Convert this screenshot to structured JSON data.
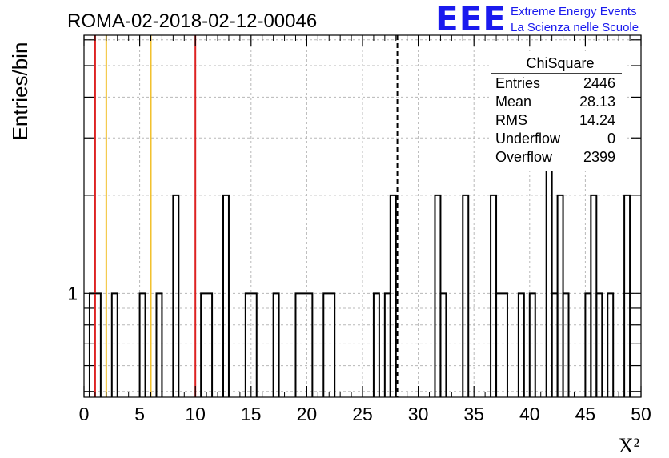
{
  "chart_data": {
    "type": "histogram",
    "title": "ROMA-02-2018-02-12-00046",
    "xlabel": "X²",
    "ylabel": "Entries/bin",
    "xlim": [
      0,
      50
    ],
    "ylim": [
      0.48,
      6.2
    ],
    "y_scale": "log",
    "bin_width": 0.5,
    "x_ticks": [
      "0",
      "5",
      "10",
      "15",
      "20",
      "25",
      "30",
      "35",
      "40",
      "45",
      "50"
    ],
    "y_ticks": [
      "1"
    ],
    "grid": true,
    "bins": [
      {
        "x": [
          0.5,
          1.5
        ],
        "y": 1
      },
      {
        "x": [
          2.5,
          3.0
        ],
        "y": 1
      },
      {
        "x": [
          5.0,
          5.5
        ],
        "y": 1
      },
      {
        "x": [
          6.5,
          7.0
        ],
        "y": 1
      },
      {
        "x": [
          8.0,
          8.5
        ],
        "y": 2
      },
      {
        "x": [
          10.5,
          11.5
        ],
        "y": 1
      },
      {
        "x": [
          12.5,
          13.0
        ],
        "y": 2
      },
      {
        "x": [
          14.5,
          15.5
        ],
        "y": 1
      },
      {
        "x": [
          17.0,
          17.5
        ],
        "y": 1
      },
      {
        "x": [
          19.0,
          20.5
        ],
        "y": 1
      },
      {
        "x": [
          21.5,
          22.5
        ],
        "y": 1
      },
      {
        "x": [
          26.0,
          26.5
        ],
        "y": 1
      },
      {
        "x": [
          27.0,
          27.5
        ],
        "y": 1
      },
      {
        "x": [
          27.5,
          28.0
        ],
        "y": 2
      },
      {
        "x": [
          31.5,
          32.0
        ],
        "y": 2
      },
      {
        "x": [
          32.0,
          32.5
        ],
        "y": 1
      },
      {
        "x": [
          34.0,
          34.5
        ],
        "y": 2
      },
      {
        "x": [
          36.5,
          37.0
        ],
        "y": 2
      },
      {
        "x": [
          37.0,
          38.0
        ],
        "y": 1
      },
      {
        "x": [
          39.0,
          39.5
        ],
        "y": 1
      },
      {
        "x": [
          40.0,
          40.5
        ],
        "y": 1
      },
      {
        "x": [
          41.5,
          42.0
        ],
        "y": 3
      },
      {
        "x": [
          42.0,
          42.5
        ],
        "y": 1
      },
      {
        "x": [
          42.5,
          43.0
        ],
        "y": 2
      },
      {
        "x": [
          43.0,
          43.5
        ],
        "y": 1
      },
      {
        "x": [
          45.0,
          45.5
        ],
        "y": 1
      },
      {
        "x": [
          45.5,
          46.0
        ],
        "y": 2
      },
      {
        "x": [
          46.0,
          46.5
        ],
        "y": 1
      },
      {
        "x": [
          47.0,
          47.5
        ],
        "y": 1
      },
      {
        "x": [
          48.5,
          49.0
        ],
        "y": 2
      }
    ],
    "vertical_lines": [
      {
        "x": 1,
        "color": "#dd2222",
        "style": "solid"
      },
      {
        "x": 2,
        "color": "#f2c12e",
        "style": "solid"
      },
      {
        "x": 6,
        "color": "#f2c12e",
        "style": "solid"
      },
      {
        "x": 10,
        "color": "#dd2222",
        "style": "solid"
      },
      {
        "x": 28.13,
        "color": "#000000",
        "style": "dashed"
      }
    ],
    "stats_box": {
      "title": "ChiSquare",
      "rows": [
        {
          "label": "Entries",
          "value": "2446"
        },
        {
          "label": "Mean",
          "value": "28.13"
        },
        {
          "label": "RMS",
          "value": "14.24"
        },
        {
          "label": "Underflow",
          "value": "0"
        },
        {
          "label": "Overflow",
          "value": "2399"
        }
      ]
    }
  },
  "logo": {
    "mark": "EEE",
    "line1": "Extreme Energy Events",
    "line2": "La Scienza nelle Scuole"
  },
  "colors": {
    "logo_blue": "#1a1aee",
    "grid": "#b8b8b8",
    "histogram": "#000000"
  }
}
